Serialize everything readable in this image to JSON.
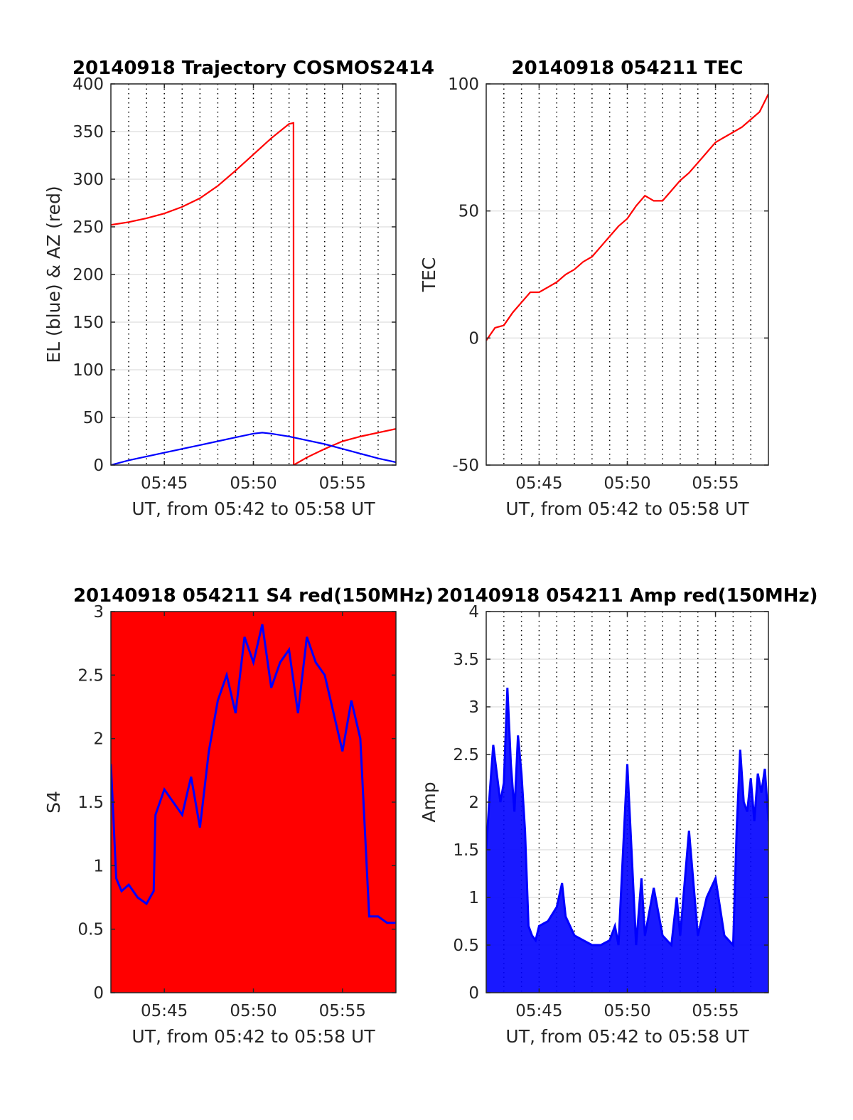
{
  "chart_data": [
    {
      "type": "line",
      "title": "20140918 Trajectory COSMOS2414",
      "xlabel": "UT, from 05:42 to 05:58 UT",
      "ylabel": "EL (blue) & AZ (red)",
      "xlim": [
        0,
        16
      ],
      "ylim": [
        0,
        400
      ],
      "xticks": [
        3,
        8,
        13
      ],
      "xtick_labels": [
        "05:45",
        "05:50",
        "05:55"
      ],
      "yticks": [
        0,
        50,
        100,
        150,
        200,
        250,
        300,
        350,
        400
      ],
      "ytick_labels": [
        "0",
        "50",
        "100",
        "150",
        "200",
        "250",
        "300",
        "350",
        "400"
      ],
      "grid": true,
      "series": [
        {
          "color": "#ff0000",
          "x": [
            0,
            1,
            2,
            3,
            4,
            5,
            6,
            7,
            8,
            9,
            10,
            10.25,
            10.26,
            11,
            12,
            13,
            14,
            15,
            16
          ],
          "y": [
            252,
            255,
            259,
            264,
            271,
            280,
            293,
            309,
            326,
            343,
            358,
            359,
            0,
            8,
            17,
            25,
            30,
            34,
            38
          ]
        },
        {
          "color": "#0000ff",
          "x": [
            0,
            1,
            2,
            3,
            4,
            5,
            6,
            7,
            8,
            8.5,
            9,
            10,
            11,
            12,
            13,
            14,
            15,
            16
          ],
          "y": [
            0,
            5,
            9,
            13,
            17,
            21,
            25,
            29,
            33,
            34,
            33,
            30,
            26,
            22,
            17,
            12,
            7,
            3
          ]
        }
      ]
    },
    {
      "type": "line",
      "title": "20140918 054211 TEC",
      "xlabel": "UT, from 05:42 to 05:58 UT",
      "ylabel": "TEC",
      "xlim": [
        0,
        16
      ],
      "ylim": [
        -50,
        100
      ],
      "xticks": [
        3,
        8,
        13
      ],
      "xtick_labels": [
        "05:45",
        "05:50",
        "05:55"
      ],
      "yticks": [
        -50,
        0,
        50,
        100
      ],
      "ytick_labels": [
        "-50",
        "0",
        "50",
        "100"
      ],
      "grid": true,
      "series": [
        {
          "color": "#ff0000",
          "x": [
            0,
            0.5,
            1,
            1.5,
            2,
            2.5,
            3,
            3.5,
            4,
            4.5,
            5,
            5.5,
            6,
            6.5,
            7,
            7.5,
            8,
            8.5,
            9,
            9.5,
            10,
            10.5,
            11,
            11.5,
            12,
            12.5,
            13,
            13.5,
            14,
            14.5,
            15,
            15.5,
            16
          ],
          "y": [
            -1,
            4,
            5,
            10,
            14,
            18,
            18,
            20,
            22,
            25,
            27,
            30,
            32,
            36,
            40,
            44,
            47,
            52,
            56,
            54,
            54,
            58,
            62,
            65,
            69,
            73,
            77,
            79,
            81,
            83,
            86,
            89,
            96
          ]
        }
      ]
    },
    {
      "type": "line",
      "title": "20140918 054211 S4 red(150MHz)",
      "xlabel": "UT, from 05:42 to 05:58 UT",
      "ylabel": "S4",
      "xlim": [
        0,
        16
      ],
      "ylim": [
        0,
        3
      ],
      "xticks": [
        3,
        8,
        13
      ],
      "xtick_labels": [
        "05:45",
        "05:50",
        "05:55"
      ],
      "yticks": [
        0,
        0.5,
        1,
        1.5,
        2,
        2.5,
        3
      ],
      "ytick_labels": [
        "0",
        "0.5",
        "1",
        "1.5",
        "2",
        "2.5",
        "3"
      ],
      "grid": true,
      "series": [
        {
          "color": "#ff0000",
          "x": [
            0,
            16
          ],
          "y": [
            3,
            3
          ]
        },
        {
          "color": "#0000ff",
          "x": [
            0,
            0.3,
            0.6,
            1,
            1.5,
            2,
            2.4,
            2.5,
            3,
            3.5,
            4,
            4.5,
            5,
            5.5,
            6,
            6.5,
            7,
            7.5,
            8,
            8.5,
            9,
            9.5,
            10,
            10.5,
            11,
            11.5,
            12,
            12.5,
            13,
            13.5,
            14,
            14.5,
            15,
            15.5,
            16
          ],
          "y": [
            1.8,
            0.9,
            0.8,
            0.85,
            0.75,
            0.7,
            0.8,
            1.4,
            1.6,
            1.5,
            1.4,
            1.7,
            1.3,
            1.9,
            2.3,
            2.5,
            2.2,
            2.8,
            2.6,
            2.9,
            2.4,
            2.6,
            2.7,
            2.2,
            2.8,
            2.6,
            2.5,
            2.2,
            1.9,
            2.3,
            2.0,
            0.6,
            0.6,
            0.55,
            0.55
          ]
        }
      ]
    },
    {
      "type": "line",
      "title": "20140918 054211 Amp red(150MHz)",
      "xlabel": "UT, from 05:42 to 05:58 UT",
      "ylabel": "Amp",
      "xlim": [
        0,
        16
      ],
      "ylim": [
        0,
        4
      ],
      "xticks": [
        3,
        8,
        13
      ],
      "xtick_labels": [
        "05:45",
        "05:50",
        "05:55"
      ],
      "yticks": [
        0,
        0.5,
        1,
        1.5,
        2,
        2.5,
        3,
        3.5,
        4
      ],
      "ytick_labels": [
        "0",
        "0.5",
        "1",
        "1.5",
        "2",
        "2.5",
        "3",
        "3.5",
        "4"
      ],
      "grid": true,
      "series": [
        {
          "color": "#0000ff",
          "x": [
            0,
            0.2,
            0.4,
            0.6,
            0.8,
            1,
            1.2,
            1.4,
            1.6,
            1.8,
            2,
            2.2,
            2.4,
            2.6,
            2.8,
            3,
            3.5,
            4,
            4.3,
            4.5,
            5,
            5.5,
            6,
            6.5,
            7,
            7.3,
            7.5,
            8,
            8.5,
            8.8,
            9,
            9.5,
            10,
            10.5,
            10.8,
            11,
            11.5,
            12,
            12.5,
            13,
            13.5,
            14,
            14.2,
            14.4,
            14.6,
            14.8,
            15,
            15.2,
            15.4,
            15.6,
            15.8,
            16
          ],
          "y": [
            1.5,
            2.1,
            2.6,
            2.3,
            2.0,
            2.2,
            3.2,
            2.4,
            1.9,
            2.7,
            2.3,
            1.7,
            0.7,
            0.6,
            0.55,
            0.7,
            0.75,
            0.9,
            1.15,
            0.8,
            0.6,
            0.55,
            0.5,
            0.5,
            0.55,
            0.7,
            0.5,
            2.4,
            0.5,
            1.2,
            0.6,
            1.1,
            0.6,
            0.5,
            1.0,
            0.6,
            1.7,
            0.6,
            1.0,
            1.2,
            0.6,
            0.5,
            1.7,
            2.55,
            2.0,
            1.9,
            2.25,
            1.8,
            2.3,
            2.1,
            2.35,
            1.8
          ]
        }
      ]
    }
  ]
}
